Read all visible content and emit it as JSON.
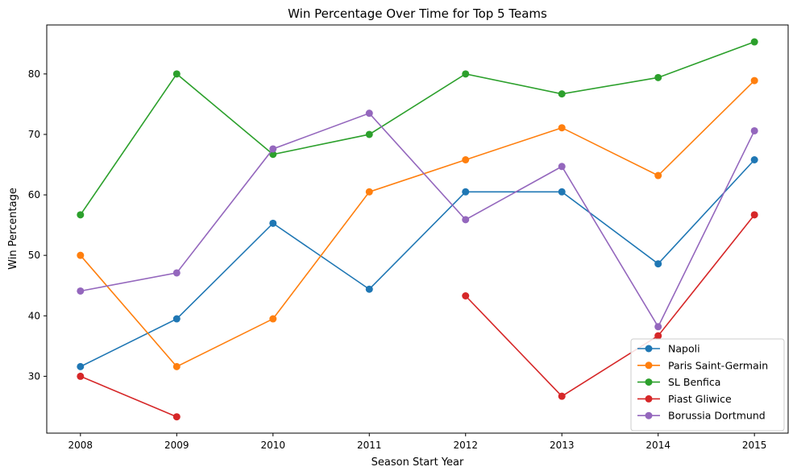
{
  "chart_data": {
    "type": "line",
    "title": "Win Percentage Over Time for Top 5 Teams",
    "xlabel": "Season Start Year",
    "ylabel": "Win Percentage",
    "x": [
      2008,
      2009,
      2010,
      2011,
      2012,
      2013,
      2014,
      2015
    ],
    "xlim": [
      2007.65,
      2015.35
    ],
    "ylim": [
      20.6,
      88.1
    ],
    "yticks": [
      30,
      40,
      50,
      60,
      70,
      80
    ],
    "grid": false,
    "legend_position": "lower right",
    "series": [
      {
        "name": "Napoli",
        "color": "#1f77b4",
        "values": [
          31.6,
          39.5,
          55.3,
          44.4,
          60.5,
          60.5,
          48.6,
          65.8
        ]
      },
      {
        "name": "Paris Saint-Germain",
        "color": "#ff7f0e",
        "values": [
          50.0,
          31.6,
          39.5,
          60.5,
          65.8,
          71.1,
          63.2,
          78.9
        ]
      },
      {
        "name": "SL Benfica",
        "color": "#2ca02c",
        "values": [
          56.7,
          80.0,
          66.7,
          70.0,
          80.0,
          76.7,
          79.4,
          85.3
        ]
      },
      {
        "name": "Piast Gliwice",
        "color": "#d62728",
        "values": [
          30.0,
          23.3,
          null,
          null,
          43.3,
          26.7,
          36.7,
          56.7
        ]
      },
      {
        "name": "Borussia Dortmund",
        "color": "#9467bd",
        "values": [
          44.1,
          47.1,
          67.6,
          73.5,
          55.9,
          64.7,
          38.2,
          70.6
        ]
      }
    ]
  }
}
